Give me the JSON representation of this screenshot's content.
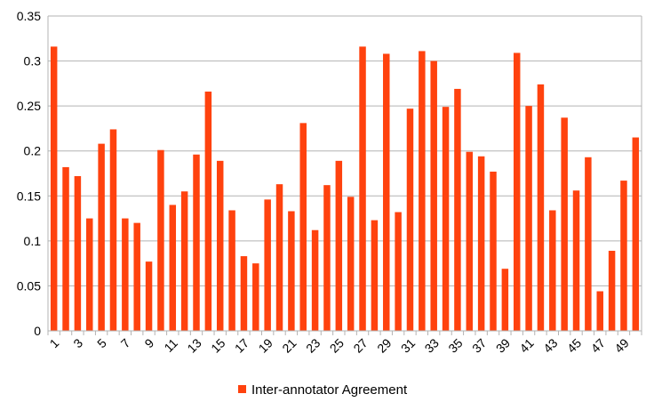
{
  "chart_data": {
    "type": "bar",
    "categories": [
      "1",
      "2",
      "3",
      "4",
      "5",
      "6",
      "7",
      "8",
      "9",
      "10",
      "11",
      "12",
      "13",
      "14",
      "15",
      "16",
      "17",
      "18",
      "19",
      "20",
      "21",
      "22",
      "23",
      "24",
      "25",
      "26",
      "27",
      "28",
      "29",
      "30",
      "31",
      "32",
      "33",
      "34",
      "35",
      "36",
      "37",
      "38",
      "39",
      "40",
      "41",
      "42",
      "43",
      "44",
      "45",
      "46",
      "47",
      "48",
      "49",
      "50"
    ],
    "x_tick_labels": [
      "1",
      "3",
      "5",
      "7",
      "9",
      "11",
      "13",
      "15",
      "17",
      "19",
      "21",
      "23",
      "25",
      "27",
      "29",
      "31",
      "33",
      "35",
      "37",
      "39",
      "41",
      "43",
      "45",
      "47",
      "49"
    ],
    "series": [
      {
        "name": "Inter-annotator Agreement",
        "color": "#ff420e",
        "values": [
          0.316,
          0.182,
          0.172,
          0.125,
          0.208,
          0.224,
          0.125,
          0.12,
          0.077,
          0.201,
          0.14,
          0.155,
          0.196,
          0.266,
          0.189,
          0.134,
          0.083,
          0.075,
          0.146,
          0.163,
          0.133,
          0.231,
          0.112,
          0.162,
          0.189,
          0.149,
          0.316,
          0.123,
          0.308,
          0.132,
          0.247,
          0.311,
          0.3,
          0.249,
          0.269,
          0.199,
          0.194,
          0.177,
          0.069,
          0.309,
          0.25,
          0.274,
          0.134,
          0.237,
          0.156,
          0.193,
          0.044,
          0.089,
          0.167,
          0.215
        ]
      }
    ],
    "y_ticks": [
      "0",
      "0.05",
      "0.1",
      "0.15",
      "0.2",
      "0.25",
      "0.3",
      "0.35"
    ],
    "ylim": [
      0,
      0.35
    ],
    "grid": true,
    "legend_position": "bottom",
    "title": "",
    "xlabel": "",
    "ylabel": ""
  }
}
